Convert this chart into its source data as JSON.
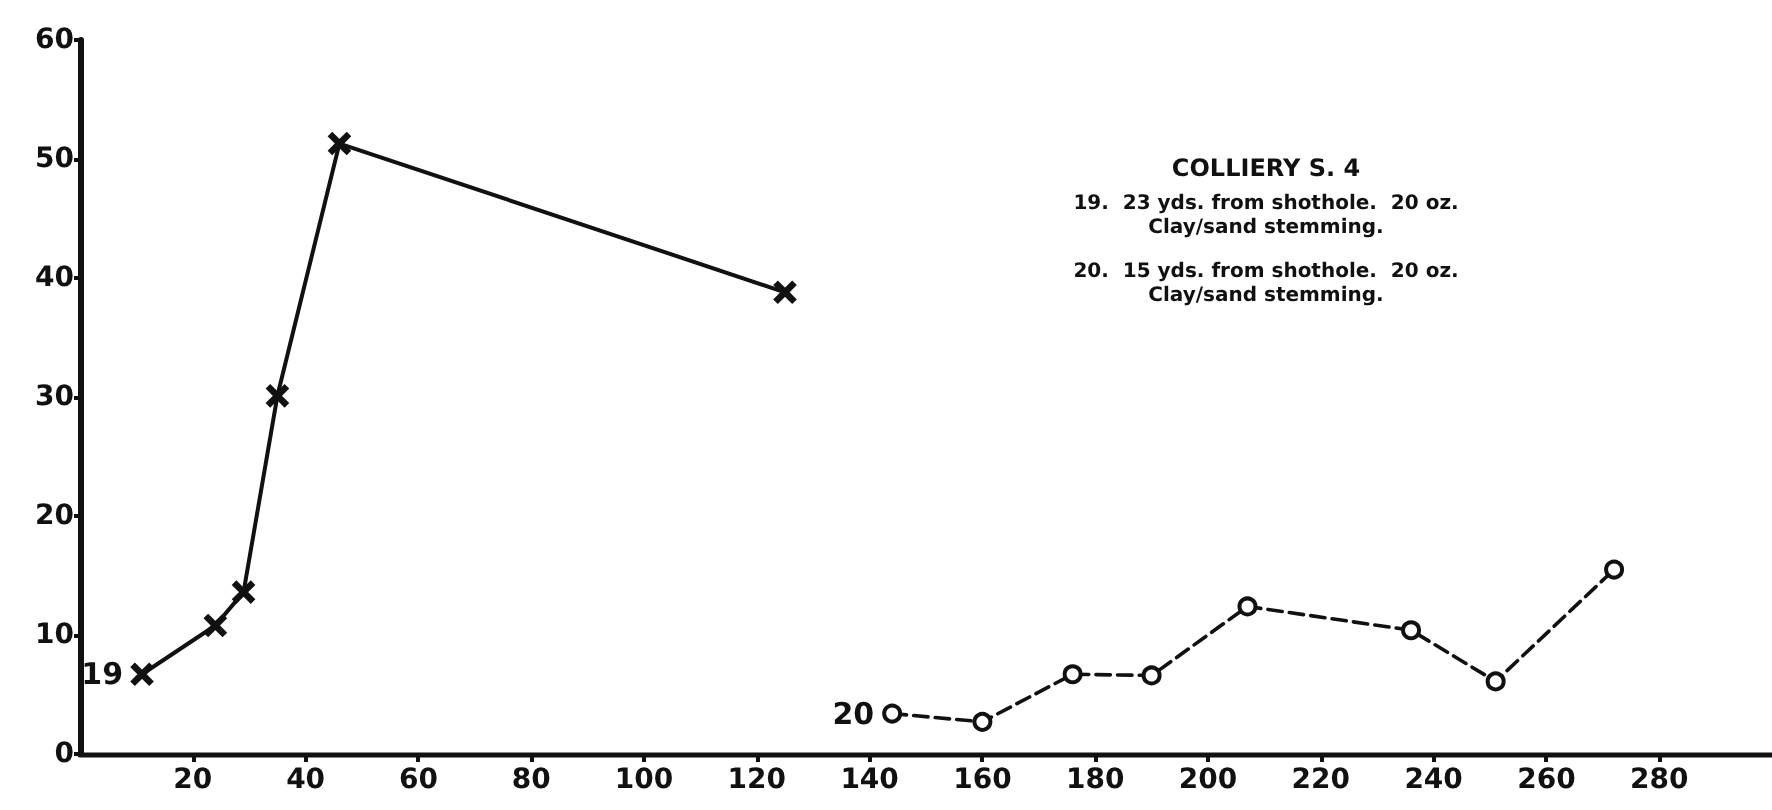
{
  "chart_data": {
    "type": "line",
    "title": "COLLIERY S. 4",
    "annotations": [
      "19.  23 yds. from shothole.  20 oz.",
      "Clay/sand stemming.",
      "20.  15 yds. from shothole.  20 oz.",
      "Clay/sand stemming."
    ],
    "series": [
      {
        "name": "19",
        "color": "#111111",
        "marker": "cross",
        "line_style": "solid",
        "x": [
          11,
          24,
          29,
          35,
          46,
          125
        ],
        "values": [
          6.7,
          10.8,
          13.6,
          30.1,
          51.3,
          38.8
        ]
      },
      {
        "name": "20",
        "color": "#111111",
        "marker": "circle",
        "line_style": "dashed",
        "x": [
          144,
          160,
          176,
          190,
          207,
          236,
          251,
          272
        ],
        "values": [
          3.4,
          2.7,
          6.7,
          6.6,
          12.4,
          10.4,
          6.1,
          15.5
        ]
      }
    ],
    "xlim": [
      0,
      300
    ],
    "xticks": [
      20,
      40,
      60,
      80,
      100,
      120,
      140,
      160,
      180,
      200,
      220,
      240,
      260,
      280
    ],
    "ylim": [
      0,
      60
    ],
    "yticks": [
      0,
      10,
      20,
      30,
      40,
      50,
      60
    ],
    "grid": false,
    "legend": false
  }
}
